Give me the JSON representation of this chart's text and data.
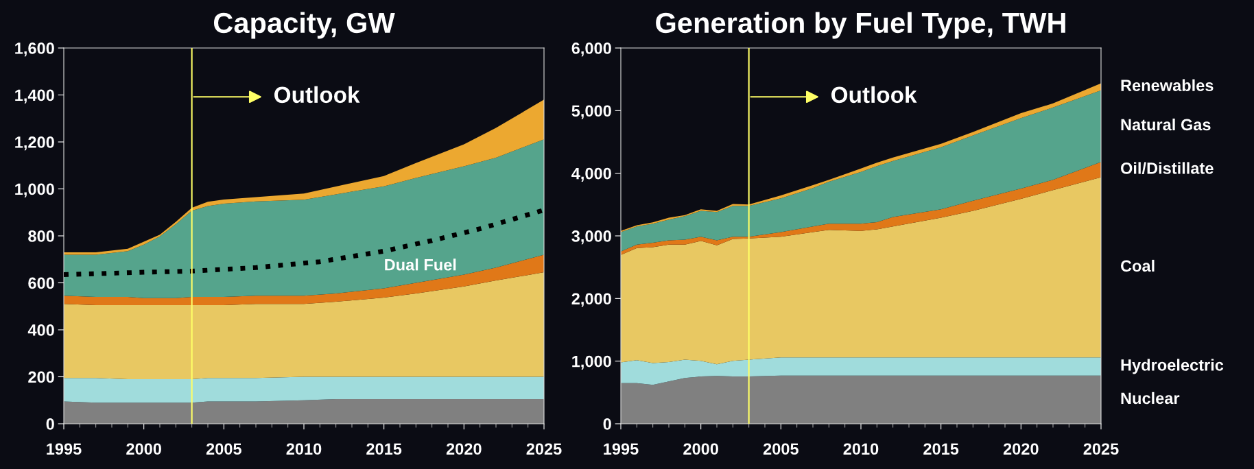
{
  "chart_data": [
    {
      "type": "area",
      "stacked": true,
      "title": "Capacity, GW",
      "x": [
        1995,
        1997,
        1999,
        2000,
        2001,
        2002,
        2003,
        2004,
        2005,
        2007,
        2010,
        2012,
        2015,
        2017,
        2020,
        2022,
        2025
      ],
      "xlim": [
        1995,
        2025
      ],
      "xticks": [
        1995,
        2000,
        2005,
        2010,
        2015,
        2020,
        2025
      ],
      "ylim": [
        0,
        1600
      ],
      "yticks": [
        {
          "value": 0,
          "label": "0"
        },
        {
          "value": 200,
          "label": "200"
        },
        {
          "value": 400,
          "label": "400"
        },
        {
          "value": 600,
          "label": "600"
        },
        {
          "value": 800,
          "label": "800"
        },
        {
          "value": 1000,
          "label": "1,000"
        },
        {
          "value": 1200,
          "label": "1,200"
        },
        {
          "value": 1400,
          "label": "1,400"
        },
        {
          "value": 1600,
          "label": "1,600"
        }
      ],
      "grid": false,
      "ref_lines": [
        {
          "axis": "x",
          "value": 2003,
          "label": "Outlook",
          "color": "#ffff66"
        }
      ],
      "series": [
        {
          "color": "#808080",
          "values": [
            95,
            90,
            90,
            90,
            90,
            90,
            90,
            95,
            95,
            95,
            100,
            105,
            105,
            105,
            105,
            105,
            105
          ]
        },
        {
          "color": "#a0dcdc",
          "values": [
            100,
            105,
            100,
            100,
            100,
            100,
            100,
            100,
            100,
            100,
            100,
            95,
            95,
            95,
            95,
            95,
            95
          ]
        },
        {
          "color": "#e8c862",
          "values": [
            315,
            310,
            315,
            315,
            315,
            315,
            315,
            310,
            310,
            315,
            310,
            320,
            337,
            355,
            385,
            410,
            445
          ]
        },
        {
          "color": "#e07818",
          "values": [
            35,
            35,
            35,
            30,
            30,
            30,
            35,
            35,
            35,
            35,
            35,
            35,
            40,
            45,
            50,
            55,
            75
          ]
        },
        {
          "color": "#55a48c",
          "values": [
            175,
            180,
            195,
            228,
            263,
            315,
            367,
            387,
            397,
            402,
            409,
            422,
            434,
            447,
            461,
            468,
            491
          ]
        },
        {
          "color": "#eca830",
          "values": [
            10,
            10,
            10,
            12,
            7,
            10,
            13,
            18,
            18,
            18,
            26,
            33,
            44,
            63,
            94,
            127,
            169
          ]
        },
        {
          "type": "line",
          "name": "Dual Fuel",
          "color": "#000000",
          "line_style": "dotted",
          "x": [
            1995,
            2000,
            2003,
            2007,
            2011,
            2015,
            2018,
            2021,
            2025
          ],
          "values": [
            635,
            645,
            650,
            665,
            690,
            735,
            780,
            830,
            910
          ]
        }
      ]
    },
    {
      "type": "area",
      "stacked": true,
      "title": "Generation by Fuel Type, TWH",
      "x": [
        1995,
        1996,
        1997,
        1998,
        1999,
        2000,
        2001,
        2002,
        2003,
        2005,
        2007,
        2008,
        2010,
        2011,
        2012,
        2015,
        2017,
        2020,
        2022,
        2025
      ],
      "xlim": [
        1995,
        2025
      ],
      "xticks": [
        1995,
        2000,
        2005,
        2010,
        2015,
        2020,
        2025
      ],
      "ylim": [
        0,
        6000
      ],
      "yticks": [
        {
          "value": 0,
          "label": "0"
        },
        {
          "value": 1000,
          "label": "1,000"
        },
        {
          "value": 2000,
          "label": "2,000"
        },
        {
          "value": 3000,
          "label": "3,000"
        },
        {
          "value": 4000,
          "label": "4,000"
        },
        {
          "value": 5000,
          "label": "5,000"
        },
        {
          "value": 6000,
          "label": "6,000"
        }
      ],
      "grid": false,
      "ref_lines": [
        {
          "axis": "x",
          "value": 2003,
          "label": "Outlook",
          "color": "#ffff66"
        }
      ],
      "series": [
        {
          "name": "Nuclear",
          "color": "#808080",
          "values": [
            650,
            650,
            620,
            675,
            730,
            755,
            765,
            755,
            755,
            770,
            770,
            770,
            770,
            770,
            770,
            770,
            770,
            770,
            770,
            770
          ]
        },
        {
          "name": "Hydroelectric",
          "color": "#a0dcdc",
          "values": [
            330,
            365,
            350,
            310,
            295,
            250,
            185,
            250,
            270,
            290,
            290,
            290,
            290,
            290,
            290,
            290,
            290,
            290,
            290,
            290
          ]
        },
        {
          "name": "Coal",
          "color": "#e8c862",
          "values": [
            1715,
            1790,
            1850,
            1875,
            1835,
            1915,
            1900,
            1945,
            1935,
            1925,
            2000,
            2035,
            2020,
            2045,
            2090,
            2230,
            2340,
            2530,
            2670,
            2875
          ]
        },
        {
          "name": "Oil/Distillate",
          "color": "#e07818",
          "values": [
            55,
            55,
            70,
            70,
            80,
            65,
            80,
            35,
            25,
            75,
            90,
            100,
            115,
            115,
            150,
            135,
            160,
            165,
            165,
            245
          ]
        },
        {
          "name": "Natural Gas",
          "color": "#55a48c",
          "values": [
            310,
            290,
            305,
            330,
            375,
            415,
            450,
            495,
            495,
            540,
            615,
            670,
            825,
            895,
            895,
            990,
            1045,
            1125,
            1155,
            1145
          ]
        },
        {
          "name": "Renewables",
          "color": "#eca830",
          "values": [
            20,
            20,
            20,
            30,
            15,
            25,
            20,
            30,
            20,
            45,
            45,
            30,
            55,
            55,
            55,
            55,
            55,
            80,
            65,
            110
          ]
        }
      ]
    }
  ]
}
